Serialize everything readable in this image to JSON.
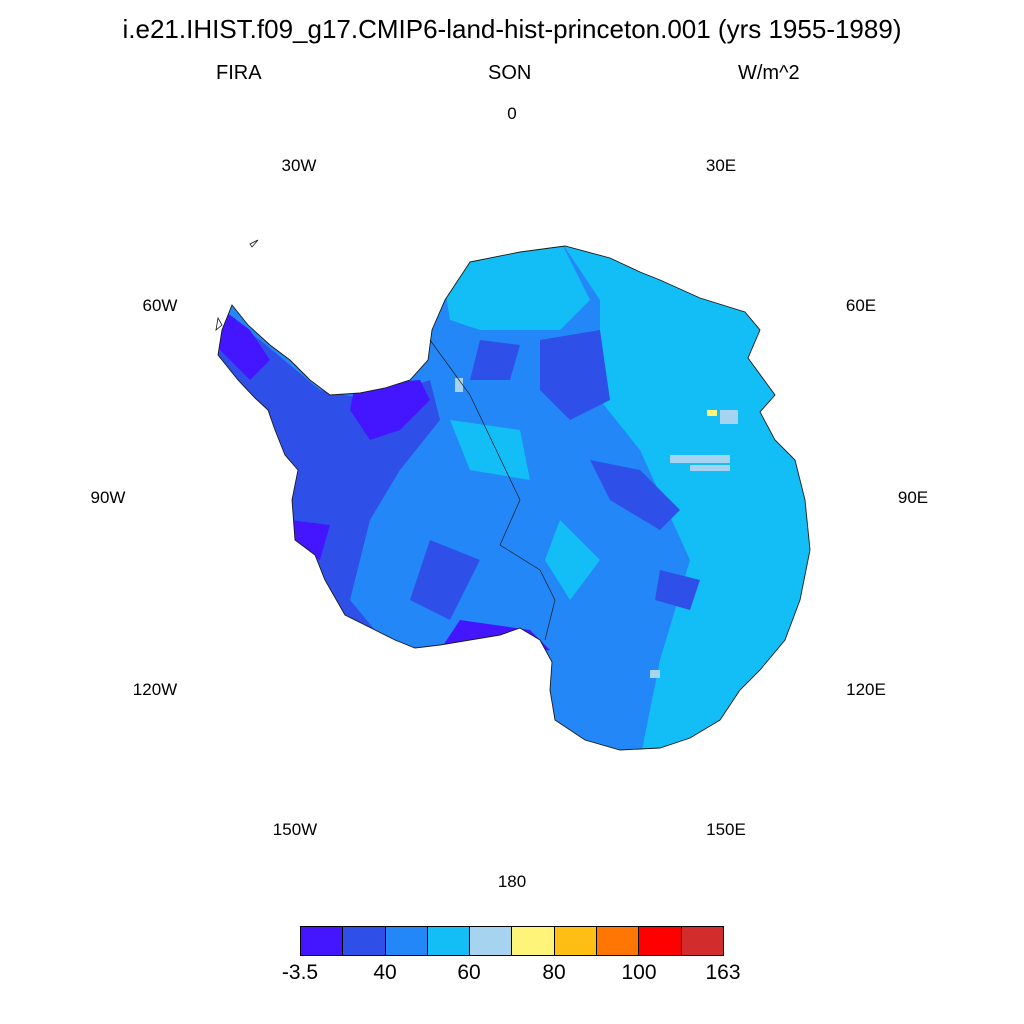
{
  "title": "i.e21.IHIST.f09_g17.CMIP6-land-hist-princeton.001 (yrs 1955-1989)",
  "subtitle": {
    "left": "FIRA",
    "center": "SON",
    "right": "W/m^2"
  },
  "longitude_labels": [
    "0",
    "30E",
    "60E",
    "90E",
    "120E",
    "150E",
    "180",
    "150W",
    "120W",
    "90W",
    "60W",
    "30W"
  ],
  "colorbar": {
    "colors": [
      "#4416ff",
      "#2f50e8",
      "#2387f7",
      "#13bef7",
      "#a5d3f0",
      "#fff47a",
      "#ffbe14",
      "#ff7605",
      "#ff0000",
      "#d32c2c"
    ],
    "tick_labels": [
      "-3.5",
      "40",
      "60",
      "80",
      "100",
      "163"
    ]
  },
  "chart_data": {
    "type": "heatmap",
    "projection": "south polar stereographic",
    "variable": "FIRA",
    "season": "SON",
    "units": "W/m^2",
    "levels": [
      -3.5,
      40,
      60,
      80,
      100,
      163
    ],
    "dominant_classes": [
      "#13bef7 (East Antarctica)",
      "#2387f7 (interior)",
      "#2f50e8 / #4416ff (West Antarctica, peninsula, ice shelves)"
    ]
  }
}
